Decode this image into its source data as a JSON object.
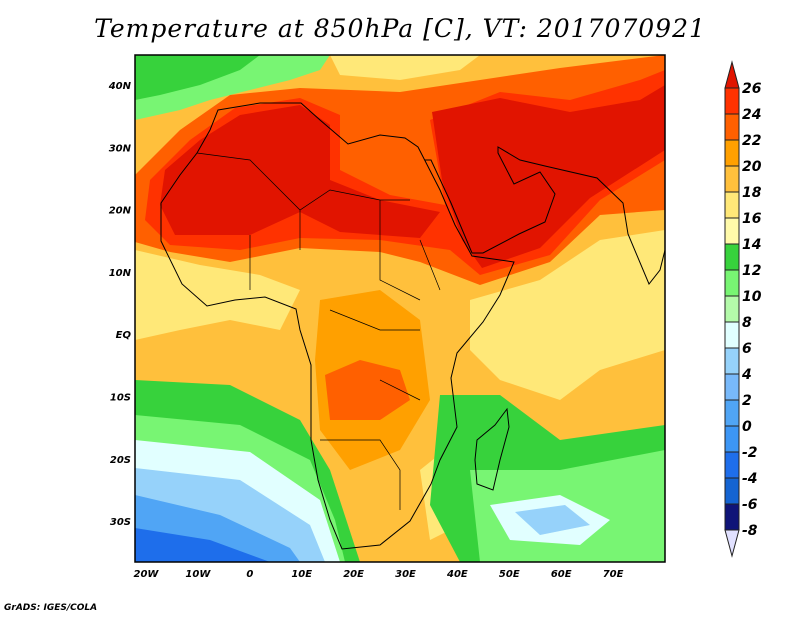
{
  "title": "Temperature at 850hPa [C], VT: 2017070921",
  "footer": "GrADS: IGES/COLA",
  "map": {
    "x_ticks": [
      "20W",
      "10W",
      "0",
      "10E",
      "20E",
      "30E",
      "40E",
      "50E",
      "60E",
      "70E"
    ],
    "y_ticks": [
      "40N",
      "30N",
      "20N",
      "10N",
      "EQ",
      "10S",
      "20S",
      "30S"
    ]
  },
  "colorbar": {
    "labels": [
      "26",
      "24",
      "22",
      "20",
      "18",
      "16",
      "14",
      "12",
      "10",
      "8",
      "6",
      "4",
      "2",
      "0",
      "-2",
      "-4",
      "-6",
      "-8"
    ],
    "colors": [
      "#e11400",
      "#ff3200",
      "#ff6000",
      "#ffa000",
      "#ffc03c",
      "#ffe878",
      "#fffaaa",
      "#37d23c",
      "#78f573",
      "#b4faaa",
      "#e1ffff",
      "#96d2fa",
      "#78b9fa",
      "#50a5f5",
      "#3c96f5",
      "#1e6eeb",
      "#1464d2",
      "#0f1478",
      "#e1e1ff"
    ]
  }
}
